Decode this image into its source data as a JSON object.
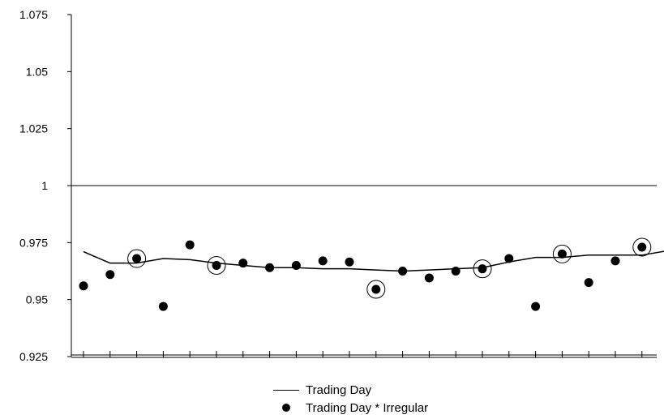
{
  "chart_data": {
    "type": "line",
    "x": [
      1,
      2,
      3,
      4,
      5,
      6,
      7,
      8,
      9,
      10,
      11,
      12,
      13,
      14,
      15,
      16,
      17,
      18,
      19,
      20,
      21,
      22,
      23
    ],
    "ylim": [
      0.925,
      1.075
    ],
    "yticks": [
      0.925,
      0.95,
      0.975,
      1,
      1.025,
      1.05,
      1.075
    ],
    "ytick_labels": [
      "0.925",
      "0.95",
      "0.975",
      "1",
      "1.025",
      "1.05",
      "1.075"
    ],
    "reference_line": 1,
    "series": [
      {
        "name": "Trading Day",
        "style": "line",
        "color": "#000000",
        "values": [
          0.971,
          0.966,
          0.966,
          0.968,
          0.9675,
          0.966,
          0.965,
          0.964,
          0.964,
          0.9635,
          0.9635,
          0.963,
          0.9625,
          0.963,
          0.9635,
          0.964,
          0.9665,
          0.9685,
          0.9685,
          0.9695,
          0.9695,
          0.9695,
          0.9715
        ]
      },
      {
        "name": "Trading Day * Irregular",
        "style": "points",
        "color": "#000000",
        "values": [
          0.956,
          0.961,
          0.968,
          0.947,
          0.974,
          0.965,
          0.966,
          0.964,
          0.965,
          0.967,
          0.9665,
          0.9545,
          0.9625,
          0.9595,
          0.9625,
          0.9635,
          0.968,
          0.947,
          0.97,
          0.9575,
          0.967,
          0.973,
          null
        ],
        "circled_indices": [
          2,
          5,
          11,
          15,
          18,
          21
        ]
      }
    ],
    "legend": {
      "position": "bottom-center",
      "items": [
        {
          "label": "Trading Day",
          "marker": "line"
        },
        {
          "label": "Trading Day * Irregular",
          "marker": "dot"
        }
      ]
    }
  }
}
